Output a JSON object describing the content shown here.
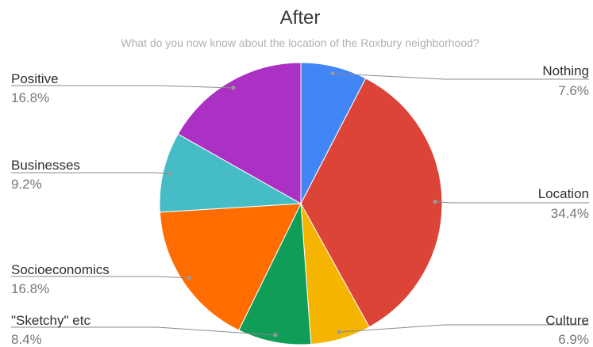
{
  "chart_data": {
    "type": "pie",
    "title": "After",
    "subtitle": "What do you now know about the location of the Roxbury neighborhood?",
    "legend": "none",
    "slices": [
      {
        "label": "Nothing",
        "value": 7.6,
        "display": "7.6%",
        "color": "#4285F4"
      },
      {
        "label": "Location",
        "value": 34.4,
        "display": "34.4%",
        "color": "#DB4437"
      },
      {
        "label": "Culture",
        "value": 6.9,
        "display": "6.9%",
        "color": "#F4B400"
      },
      {
        "label": "\"Sketchy\" etc",
        "value": 8.4,
        "display": "8.4%",
        "color": "#0F9D58"
      },
      {
        "label": "Socioeconomics",
        "value": 16.8,
        "display": "16.8%",
        "color": "#FF6D00"
      },
      {
        "label": "Businesses",
        "value": 9.2,
        "display": "9.2%",
        "color": "#46BDC6"
      },
      {
        "label": "Positive",
        "value": 16.8,
        "display": "16.8%",
        "color": "#AB30C4"
      }
    ]
  }
}
